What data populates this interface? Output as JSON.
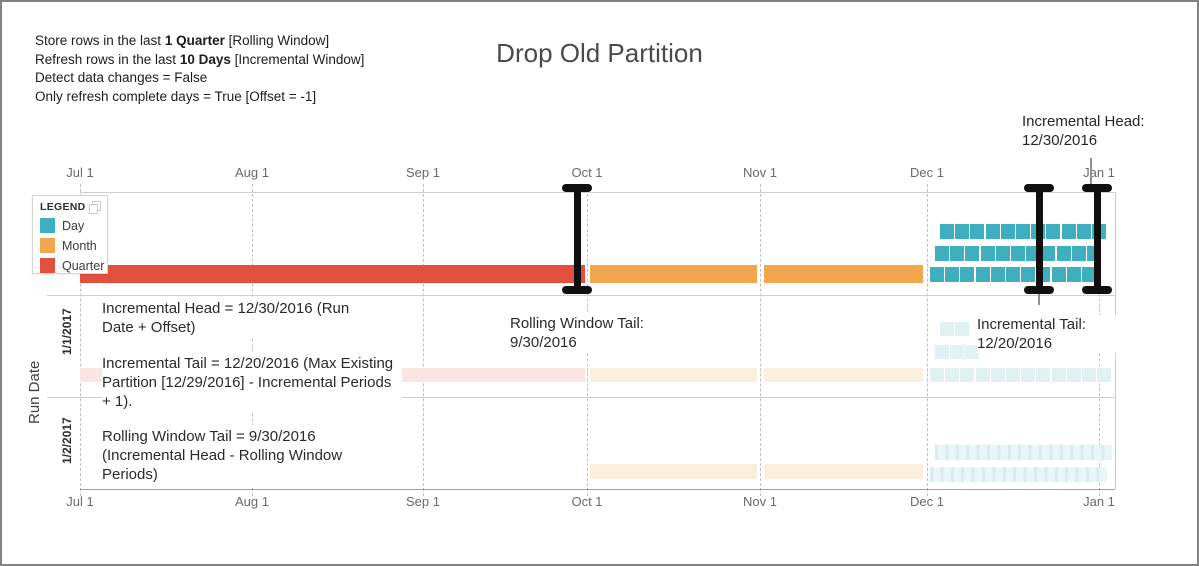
{
  "title": "Drop Old Partition",
  "config_lines": [
    {
      "pre": "Store rows in the last ",
      "bold": "1 Quarter",
      "post": " [Rolling Window]"
    },
    {
      "pre": "Refresh rows in the last ",
      "bold": "10 Days",
      "post": " [Incremental Window]"
    },
    {
      "pre": "Detect data changes = False",
      "bold": "",
      "post": ""
    },
    {
      "pre": "Only refresh complete days = True [Offset = -1]",
      "bold": "",
      "post": ""
    }
  ],
  "incremental_head_label": {
    "title": "Incremental Head:",
    "value": "12/30/2016"
  },
  "legend": {
    "title": "LEGEND",
    "items": [
      {
        "label": "Day",
        "color": "#3FAFBF"
      },
      {
        "label": "Month",
        "color": "#F2A74F"
      },
      {
        "label": "Quarter",
        "color": "#E2513D"
      }
    ]
  },
  "colors": {
    "day": "#3FAFBF",
    "month": "#F2A74F",
    "quarter": "#E2513D",
    "day_faded": "#E1F0F5",
    "month_faded": "#FCEEDC",
    "quarter_faded": "#FAE5E1",
    "marker": "#0F0F0F"
  },
  "run_date_axis": {
    "label": "Run Date",
    "categories": [
      "1/1/2017",
      "1/2/2017"
    ]
  },
  "annotations": {
    "incremental_head": "Incremental Head = 12/30/2016 (Run Date + Offset)",
    "incremental_tail": "Incremental Tail = 12/20/2016 (Max Existing Partition [12/29/2016] - Incremental Periods + 1).",
    "rolling_window_tail": "Rolling Window Tail = 9/30/2016 (Incremental Head - Rolling Window Periods)",
    "rolling_window_tail_marker": {
      "title": "Rolling Window Tail:",
      "value": "9/30/2016"
    },
    "incremental_tail_marker": {
      "title": "Incremental Tail:",
      "value": "12/20/2016"
    }
  },
  "chart_data": {
    "type": "bar",
    "subtype": "rolling-window-partition-timeline",
    "title": "Drop Old Partition",
    "x_ticks": [
      "Jul 1",
      "Aug 1",
      "Sep 1",
      "Oct 1",
      "Nov 1",
      "Dec 1",
      "Jan 1"
    ],
    "y_axis": {
      "label": "Run Date",
      "categories": [
        "",
        "1/1/2017",
        "1/2/2017"
      ]
    },
    "legend_position": "top-left",
    "grid": "vertical-dashed",
    "rows": [
      {
        "run_date": "",
        "state": "current",
        "quarter_bars": [
          {
            "from_tick": "Jul 1",
            "to_tick": "Oct 1"
          }
        ],
        "month_bars": [
          {
            "from_tick": "Oct 1",
            "to_tick": "Nov 1"
          },
          {
            "from_tick": "Nov 1",
            "to_tick": "Dec 1"
          }
        ],
        "day_square_rows": [
          {
            "squares": 11
          },
          {
            "squares": 11
          },
          {
            "squares": 11
          }
        ],
        "i_beam_markers": [
          {
            "refers_to": "Rolling Window Tail: 9/30/2016",
            "near_tick": "Oct 1"
          },
          {
            "refers_to": "Incremental Tail: 12/20/2016",
            "near_tick": "Dec 1 / Jan 1"
          },
          {
            "refers_to": "Incremental Head: 12/30/2016",
            "near_tick": "Jan 1"
          }
        ]
      },
      {
        "run_date": "1/1/2017",
        "state": "faded",
        "quarter_bars": [
          {
            "from_tick": "Jul 1",
            "to_tick": "Oct 1"
          }
        ],
        "month_bars": [
          {
            "from_tick": "Oct 1",
            "to_tick": "Nov 1"
          },
          {
            "from_tick": "Nov 1",
            "to_tick": "Dec 1"
          }
        ],
        "day_square_rows": [
          {
            "squares": 2
          },
          {
            "squares": 3
          },
          {
            "squares": 12
          }
        ],
        "i_beam_markers": []
      },
      {
        "run_date": "1/2/2017",
        "state": "faded",
        "quarter_bars": [],
        "month_bars": [
          {
            "from_tick": "Oct 1",
            "to_tick": "Nov 1"
          },
          {
            "from_tick": "Nov 1",
            "to_tick": "Dec 1"
          }
        ],
        "day_square_rows": [
          {
            "squares": 17
          },
          {
            "squares": 17
          }
        ],
        "i_beam_markers": []
      }
    ]
  }
}
